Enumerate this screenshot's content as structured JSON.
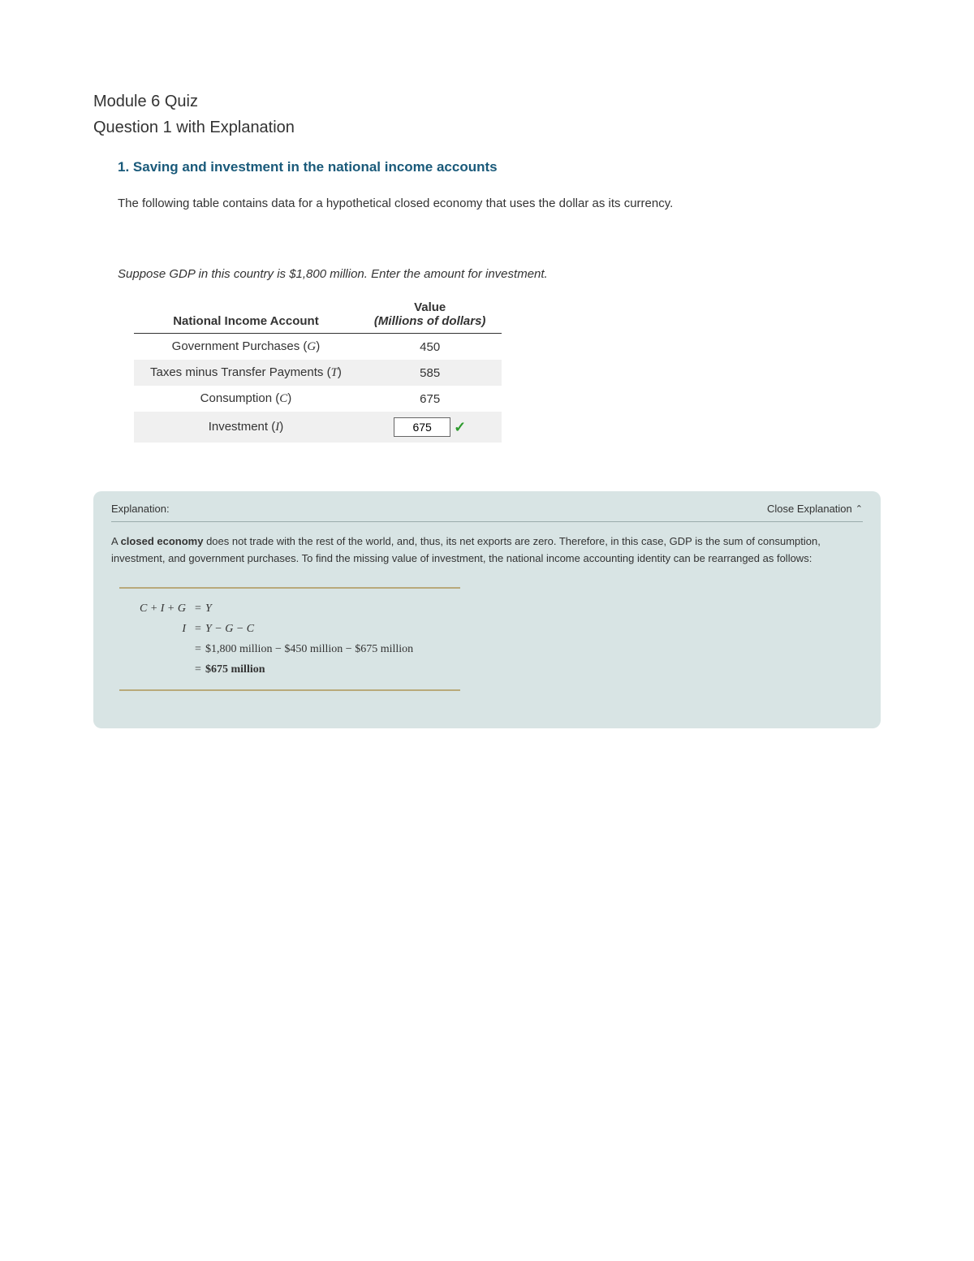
{
  "header": {
    "line1": "Module 6 Quiz",
    "line2": "Question 1 with Explanation"
  },
  "question": {
    "title": "1. Saving and investment in the national income accounts",
    "intro": "The following table contains data for a hypothetical closed economy that uses the dollar as its currency.",
    "suppose": "Suppose GDP in this country is $1,800 million. Enter the amount for investment."
  },
  "table": {
    "header_left": "National Income Account",
    "header_right_top": "Value",
    "header_right_sub": "(Millions of dollars)",
    "rows": [
      {
        "label_pre": "Government Purchases (",
        "var": "G",
        "label_post": ")",
        "value": "450",
        "input": false,
        "alt": false
      },
      {
        "label_pre": "Taxes minus Transfer Payments (",
        "var": "T",
        "label_post": ")",
        "value": "585",
        "input": false,
        "alt": true
      },
      {
        "label_pre": "Consumption (",
        "var": "C",
        "label_post": ")",
        "value": "675",
        "input": false,
        "alt": false
      },
      {
        "label_pre": "Investment (",
        "var": "I",
        "label_post": ")",
        "value": "675",
        "input": true,
        "alt": true
      }
    ],
    "input_value": "675",
    "colors": {
      "row_alt_bg": "#f0f0f0",
      "border": "#333333",
      "check": "#2e9b2e"
    }
  },
  "explanation": {
    "label": "Explanation:",
    "close_label": "Close Explanation",
    "body_parts": {
      "p1a": "A ",
      "p1b": "closed economy",
      "p1c": " does not trade with the rest of the world, and, thus, its net exports are zero. Therefore, in this case, GDP is the sum of consumption, investment, and government purchases. To find the missing value of investment, the national income accounting identity can be rearranged as follows:"
    },
    "equations": {
      "r1_left": "C + I + G",
      "r1_right": "Y",
      "r2_left": "I",
      "r2_right": "Y − G − C",
      "r3_right": "$1,800 million − $450 million − $675 million",
      "r4_right": "$675 million"
    },
    "colors": {
      "box_bg": "#d8e4e4",
      "rule": "#b8a97a",
      "divider": "#9aabab"
    }
  }
}
